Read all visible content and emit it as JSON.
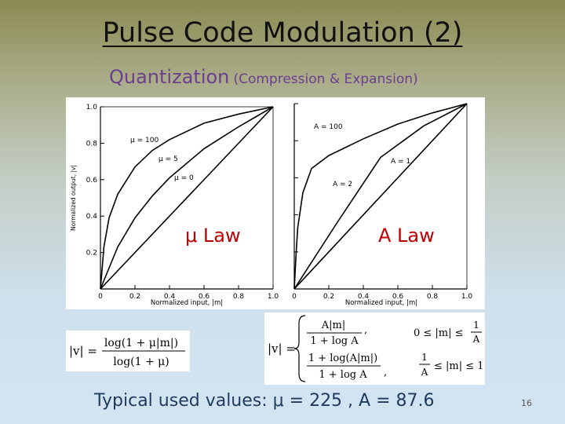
{
  "slide": {
    "title": "Pulse Code Modulation (2)",
    "subtitle_main": "Quantization",
    "subtitle_paren": "(Compression & Expansion)",
    "footer": "Typical used values: μ = 225 , A =  87.6",
    "page_number": "16"
  },
  "colors": {
    "title": "#111111",
    "subtitle": "#6b3e8f",
    "overlay_label": "#c00000",
    "footer": "#1f3a5f"
  },
  "mu_plot": {
    "overlay_label": "μ Law",
    "y_label": "Normalized output, |v|",
    "x_label": "Normalized input, |m|",
    "y_ticks": [
      "0.2",
      "0.4",
      "0.6",
      "0.8",
      "1.0"
    ],
    "x_ticks": [
      "0",
      "0.2",
      "0.4",
      "0.6",
      "0.8",
      "1.0"
    ],
    "curve_labels": [
      "μ = 100",
      "μ = 5",
      "μ = 0"
    ]
  },
  "a_plot": {
    "overlay_label": "A Law",
    "x_label": "Normalized input, |m|",
    "x_ticks": [
      "0",
      "0.2",
      "0.4",
      "0.6",
      "0.8",
      "1.0"
    ],
    "curve_labels": [
      "A = 100",
      "A = 1",
      "A = 2"
    ]
  },
  "chart_data": [
    {
      "type": "line",
      "title": "",
      "xlabel": "Normalized input, |m|",
      "ylabel": "Normalized output, |v|",
      "xlim": [
        0,
        1
      ],
      "ylim": [
        0,
        1
      ],
      "series": [
        {
          "name": "μ = 100",
          "x": [
            0,
            0.02,
            0.05,
            0.1,
            0.2,
            0.3,
            0.4,
            0.6,
            0.8,
            1.0
          ],
          "values": [
            0,
            0.23,
            0.39,
            0.52,
            0.67,
            0.76,
            0.82,
            0.91,
            0.96,
            1.0
          ]
        },
        {
          "name": "μ = 5",
          "x": [
            0,
            0.1,
            0.2,
            0.3,
            0.4,
            0.6,
            0.8,
            1.0
          ],
          "values": [
            0,
            0.23,
            0.39,
            0.51,
            0.61,
            0.77,
            0.89,
            1.0
          ]
        },
        {
          "name": "μ = 0",
          "x": [
            0,
            1.0
          ],
          "values": [
            0,
            1.0
          ]
        }
      ]
    },
    {
      "type": "line",
      "title": "",
      "xlabel": "Normalized input, |m|",
      "ylabel": "",
      "xlim": [
        0,
        1
      ],
      "ylim": [
        0,
        1
      ],
      "series": [
        {
          "name": "A = 100",
          "x": [
            0,
            0.01,
            0.02,
            0.05,
            0.1,
            0.2,
            0.4,
            0.6,
            0.8,
            1.0
          ],
          "values": [
            0,
            0.18,
            0.33,
            0.52,
            0.65,
            0.72,
            0.81,
            0.89,
            0.95,
            1.0
          ]
        },
        {
          "name": "A = 2",
          "x": [
            0,
            0.25,
            0.5,
            0.75,
            1.0
          ],
          "values": [
            0,
            0.36,
            0.71,
            0.88,
            1.0
          ]
        },
        {
          "name": "A = 1",
          "x": [
            0,
            1.0
          ],
          "values": [
            0,
            1.0
          ]
        }
      ]
    }
  ],
  "equations": {
    "mu_law": {
      "lhs": "|v| =",
      "numerator": "log(1 + μ|m|)",
      "denominator": "log(1 + μ)"
    },
    "a_law": {
      "lhs": "|v| =",
      "case1_numerator": "A|m|",
      "case1_denominator": "1 + log A",
      "case1_condition": "0 ≤ |m| ≤",
      "case1_bound_num": "1",
      "case1_bound_den": "A",
      "case2_numerator": "1 + log(A|m|)",
      "case2_denominator": "1 + log A",
      "case2_condition": "≤ |m| ≤ 1",
      "case2_bound_num": "1",
      "case2_bound_den": "A"
    }
  }
}
